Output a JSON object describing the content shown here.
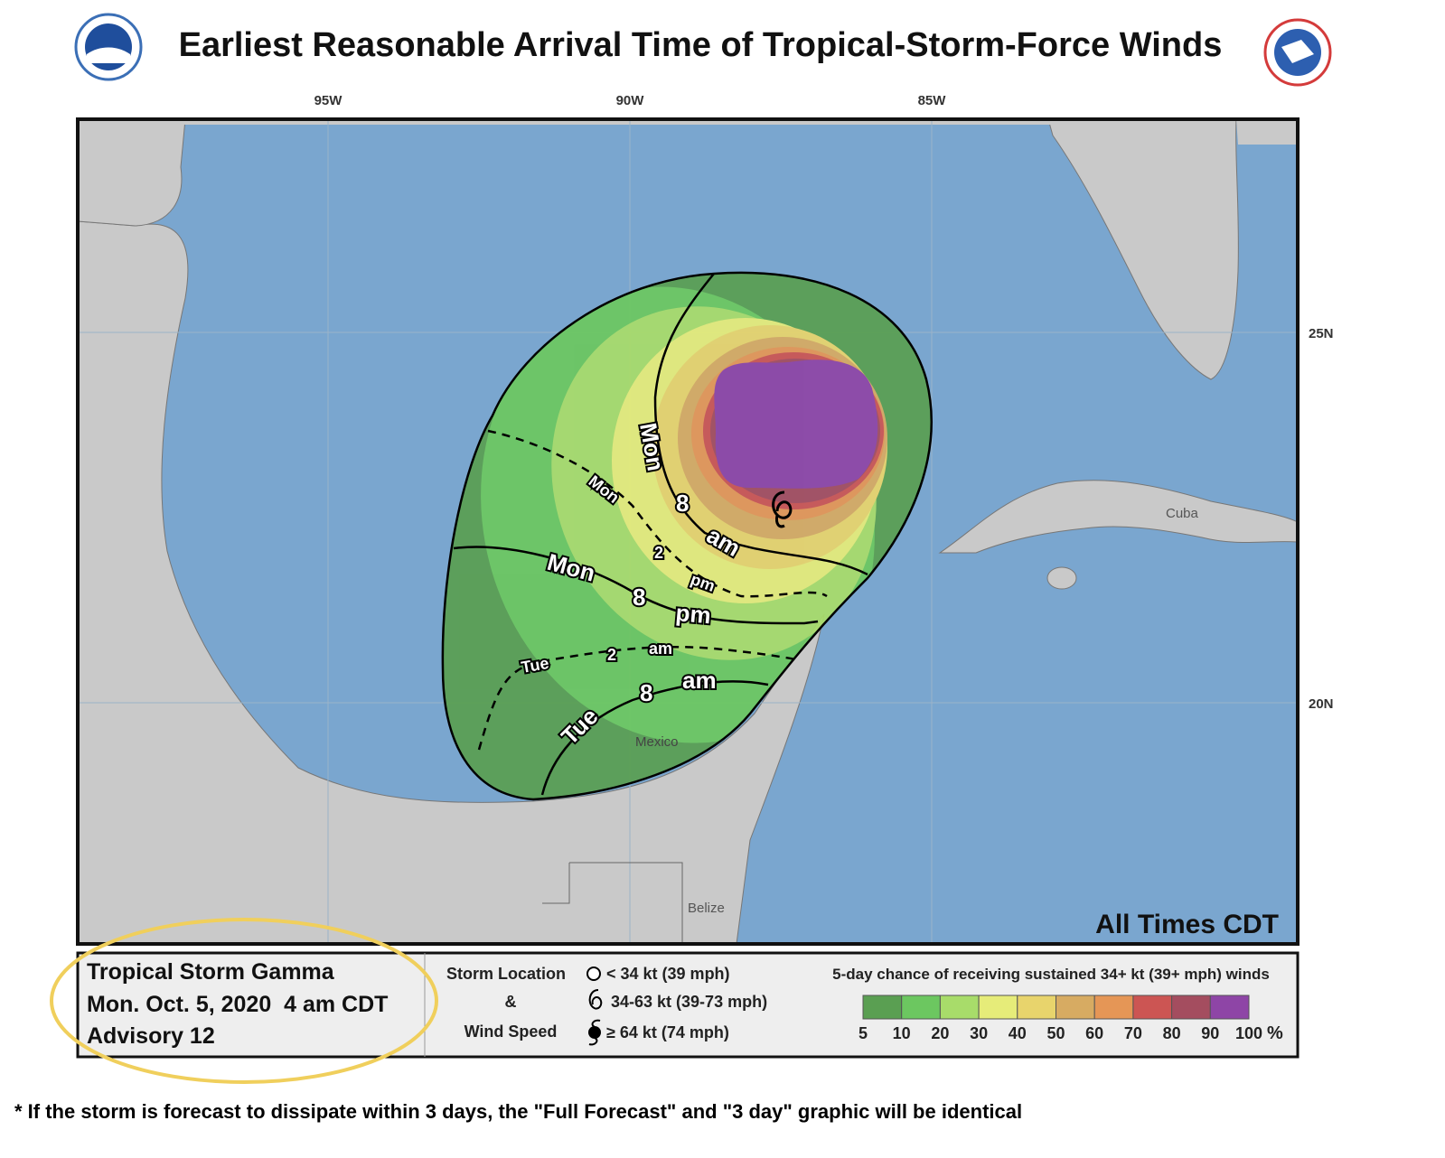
{
  "header": {
    "title": "Earliest Reasonable Arrival Time of Tropical-Storm-Force Winds"
  },
  "map": {
    "longitudes": [
      "95W",
      "90W",
      "85W"
    ],
    "latitudes": [
      "25N",
      "20N"
    ],
    "places": [
      "Cuba",
      "Mexico",
      "Belize"
    ],
    "time_zone_note": "All Times CDT",
    "time_labels": [
      {
        "day": "Mon",
        "hour": "8",
        "period": "am"
      },
      {
        "day": "Mon",
        "hour": "2",
        "period": "pm"
      },
      {
        "day": "Mon",
        "hour": "8",
        "period": "pm"
      },
      {
        "day": "Tue",
        "hour": "2",
        "period": "am"
      },
      {
        "day": "Tue",
        "hour": "8",
        "period": "am"
      }
    ]
  },
  "info": {
    "storm": "Tropical Storm Gamma",
    "issued": "Mon. Oct. 5, 2020  4 am CDT",
    "advisory": "Advisory 12"
  },
  "storm_legend": {
    "title_lines": [
      "Storm Location",
      "&",
      "Wind Speed"
    ],
    "items": [
      "< 34 kt (39 mph)",
      "34-63 kt (39-73 mph)",
      "≥ 64 kt (74 mph)"
    ]
  },
  "probability_legend": {
    "title": "5-day chance of receiving sustained 34+ kt (39+ mph) winds",
    "ticks": [
      5,
      10,
      20,
      30,
      40,
      50,
      60,
      70,
      80,
      90,
      100
    ],
    "unit": "%",
    "colors": [
      "#5a9f52",
      "#6cc760",
      "#a8dc6a",
      "#e6ec79",
      "#e8d46c",
      "#d7ab62",
      "#e59656",
      "#cc5553",
      "#a44d5f",
      "#8e45a6"
    ]
  },
  "footnote": "* If the storm is forecast to dissipate within 3 days, the \"Full Forecast\" and \"3 day\" graphic will be identical"
}
